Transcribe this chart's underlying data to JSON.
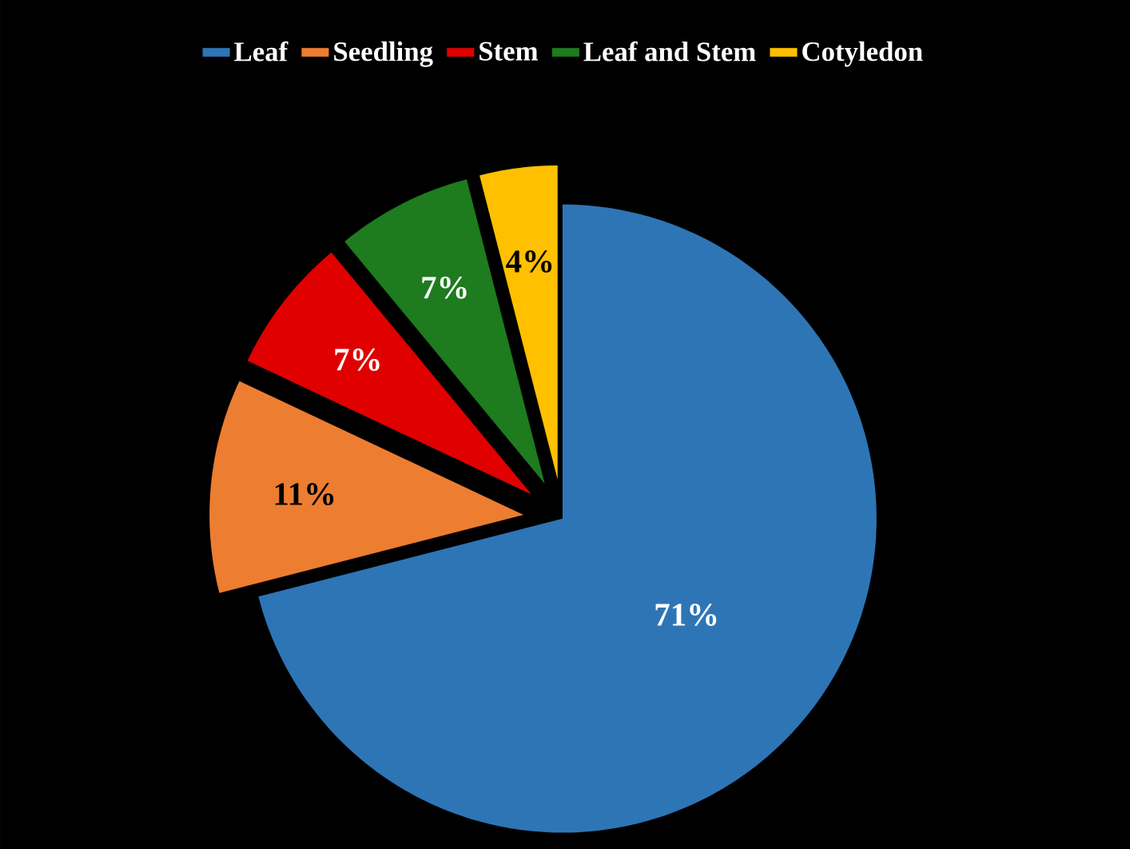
{
  "chart_data": {
    "type": "pie",
    "categories": [
      "Leaf",
      "Seedling",
      "Stem",
      "Leaf and Stem",
      "Cotyledon"
    ],
    "values": [
      71,
      11,
      7,
      7,
      4
    ],
    "colors": [
      "#2e75b6",
      "#ed7d31",
      "#e00000",
      "#1e7b1e",
      "#ffc000"
    ],
    "value_labels": [
      "71%",
      "11%",
      "7%",
      "7%",
      "4%"
    ],
    "legend": "top"
  }
}
